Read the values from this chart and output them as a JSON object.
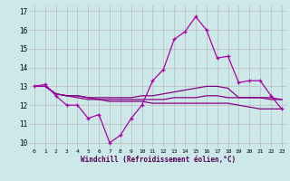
{
  "xlabel": "Windchill (Refroidissement éolien,°C)",
  "x": [
    0,
    1,
    2,
    3,
    4,
    5,
    6,
    7,
    8,
    9,
    10,
    11,
    12,
    13,
    14,
    15,
    16,
    17,
    18,
    19,
    20,
    21,
    22,
    23
  ],
  "line1": [
    13.0,
    13.1,
    12.5,
    12.0,
    12.0,
    11.3,
    11.5,
    10.0,
    10.4,
    11.3,
    12.0,
    13.3,
    13.9,
    15.5,
    15.9,
    16.7,
    16.0,
    14.5,
    14.6,
    13.2,
    13.3,
    13.3,
    12.5,
    11.8
  ],
  "line2": [
    13.0,
    13.0,
    12.6,
    12.5,
    12.5,
    12.4,
    12.4,
    12.4,
    12.4,
    12.4,
    12.5,
    12.5,
    12.6,
    12.7,
    12.8,
    12.9,
    13.0,
    13.0,
    12.9,
    12.4,
    12.4,
    12.4,
    12.3,
    12.3
  ],
  "line3": [
    13.0,
    13.0,
    12.6,
    12.5,
    12.4,
    12.3,
    12.3,
    12.2,
    12.2,
    12.2,
    12.2,
    12.1,
    12.1,
    12.1,
    12.1,
    12.1,
    12.1,
    12.1,
    12.1,
    12.0,
    11.9,
    11.8,
    11.8,
    11.8
  ],
  "line4": [
    13.0,
    13.0,
    12.6,
    12.5,
    12.5,
    12.4,
    12.3,
    12.3,
    12.3,
    12.3,
    12.3,
    12.3,
    12.3,
    12.4,
    12.4,
    12.4,
    12.5,
    12.5,
    12.4,
    12.4,
    12.4,
    12.4,
    12.4,
    12.3
  ],
  "line_color1": "#aa00aa",
  "line_color234": "#880088",
  "bg_color": "#cce8e8",
  "grid_color": "#bbbbbb",
  "ylim": [
    9.7,
    17.3
  ],
  "yticks": [
    10,
    11,
    12,
    13,
    14,
    15,
    16,
    17
  ],
  "xticks": [
    0,
    1,
    2,
    3,
    4,
    5,
    6,
    7,
    8,
    9,
    10,
    11,
    12,
    13,
    14,
    15,
    16,
    17,
    18,
    19,
    20,
    21,
    22,
    23
  ]
}
